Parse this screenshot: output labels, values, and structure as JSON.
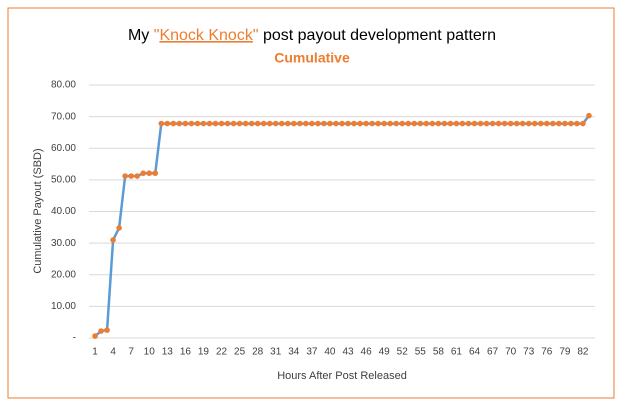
{
  "chart_data": {
    "type": "line",
    "title_parts": [
      "My ",
      "\"",
      "Knock Knock",
      "\"",
      " post payout development pattern"
    ],
    "subtitle": "Cumulative",
    "x_label": "Hours After Post Released",
    "y_label": "Cumulative Payout (SBD)",
    "x": [
      1,
      2,
      3,
      4,
      5,
      6,
      7,
      8,
      9,
      10,
      11,
      12,
      13,
      14,
      15,
      16,
      17,
      18,
      19,
      20,
      21,
      22,
      23,
      24,
      25,
      26,
      27,
      28,
      29,
      30,
      31,
      32,
      33,
      34,
      35,
      36,
      37,
      38,
      39,
      40,
      41,
      42,
      43,
      44,
      45,
      46,
      47,
      48,
      49,
      50,
      51,
      52,
      53,
      54,
      55,
      56,
      57,
      58,
      59,
      60,
      61,
      62,
      63,
      64,
      65,
      66,
      67,
      68,
      69,
      70,
      71,
      72,
      73,
      74,
      75,
      76,
      77,
      78,
      79,
      80,
      81,
      82,
      83
    ],
    "values": [
      0.6,
      2.2,
      2.5,
      31,
      34.8,
      51.2,
      51.2,
      51.2,
      52.1,
      52.1,
      52.1,
      67.8,
      67.8,
      67.8,
      67.8,
      67.8,
      67.8,
      67.8,
      67.8,
      67.8,
      67.8,
      67.8,
      67.8,
      67.8,
      67.8,
      67.8,
      67.8,
      67.8,
      67.8,
      67.8,
      67.8,
      67.8,
      67.8,
      67.8,
      67.8,
      67.8,
      67.8,
      67.8,
      67.8,
      67.8,
      67.8,
      67.8,
      67.8,
      67.8,
      67.8,
      67.8,
      67.8,
      67.8,
      67.8,
      67.8,
      67.8,
      67.8,
      67.8,
      67.8,
      67.8,
      67.8,
      67.8,
      67.8,
      67.8,
      67.8,
      67.8,
      67.8,
      67.8,
      67.8,
      67.8,
      67.8,
      67.8,
      67.8,
      67.8,
      67.8,
      67.8,
      67.8,
      67.8,
      67.8,
      67.8,
      67.8,
      67.8,
      67.8,
      67.8,
      67.8,
      67.8,
      67.8,
      70.3
    ],
    "line_color": "#5b9bd5",
    "marker_color": "#ed7d31",
    "xlim": [
      0,
      84
    ],
    "xticks": [
      1,
      4,
      7,
      10,
      13,
      16,
      19,
      22,
      25,
      28,
      31,
      34,
      37,
      40,
      43,
      46,
      49,
      52,
      55,
      58,
      61,
      64,
      67,
      70,
      73,
      76,
      79,
      82
    ],
    "ylim": [
      0,
      80
    ],
    "yticks": [
      {
        "value": 0,
        "label": "-"
      },
      {
        "value": 10,
        "label": "10.00"
      },
      {
        "value": 20,
        "label": "20.00"
      },
      {
        "value": 30,
        "label": "30.00"
      },
      {
        "value": 40,
        "label": "40.00"
      },
      {
        "value": 50,
        "label": "50.00"
      },
      {
        "value": 60,
        "label": "60.00"
      },
      {
        "value": 70,
        "label": "70.00"
      },
      {
        "value": 80,
        "label": "80.00"
      }
    ],
    "grid": true
  }
}
